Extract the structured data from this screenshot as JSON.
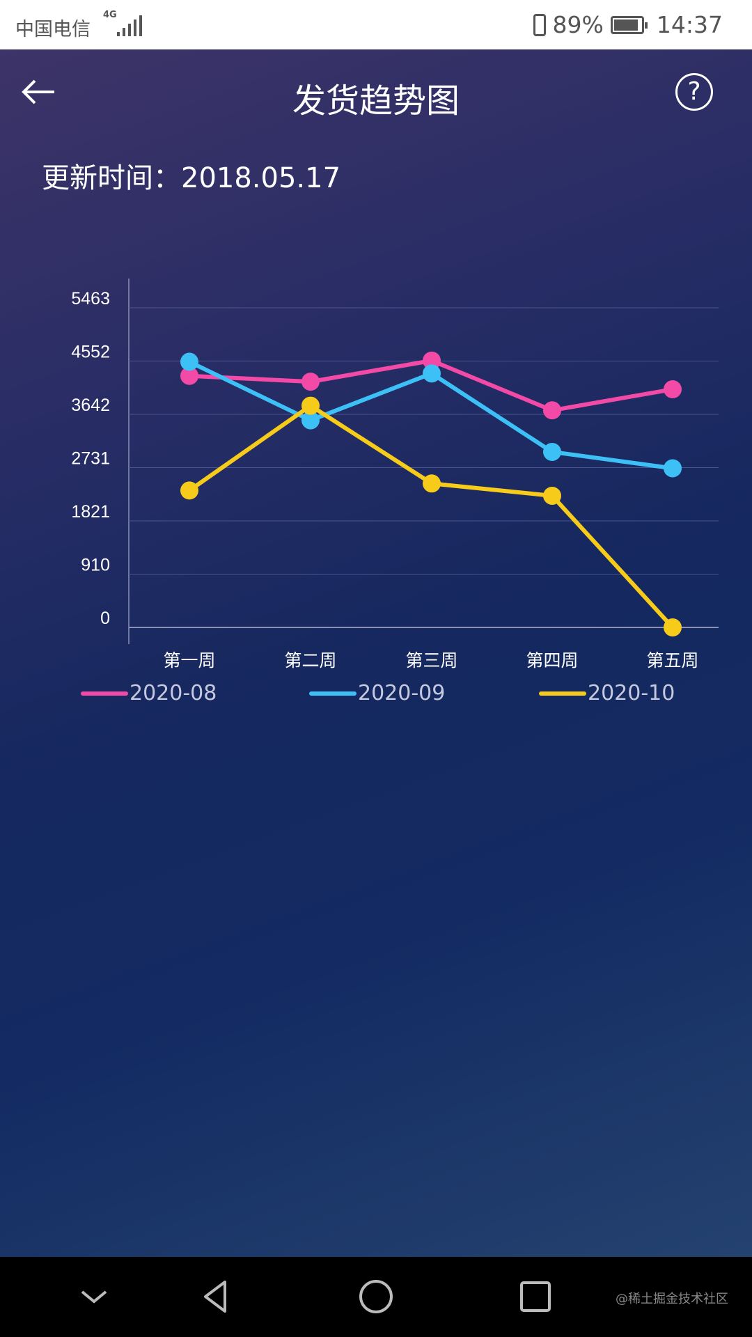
{
  "status_bar": {
    "carrier": "中国电信",
    "network": "4G",
    "battery": "89%",
    "time": "14:37"
  },
  "header": {
    "title": "发货趋势图",
    "back_icon": "arrow-left-icon",
    "help_icon": "question-circle-icon"
  },
  "update_time": "更新时间：2018.05.17",
  "chart_data": {
    "type": "line",
    "categories": [
      "第一周",
      "第二周",
      "第三周",
      "第四周",
      "第五周"
    ],
    "y_ticks": [
      "0",
      "910",
      "1821",
      "2731",
      "3642",
      "4552",
      "5463"
    ],
    "ylim": [
      0,
      5463
    ],
    "grid": true,
    "legend_position": "bottom",
    "series": [
      {
        "name": "2020-08",
        "color": "#f24aa6",
        "values": [
          4300,
          4200,
          4560,
          3710,
          4070
        ]
      },
      {
        "name": "2020-09",
        "color": "#3cc0f5",
        "values": [
          4540,
          3540,
          4340,
          3000,
          2720
        ]
      },
      {
        "name": "2020-10",
        "color": "#f6cb1a",
        "values": [
          2340,
          3790,
          2460,
          2250,
          0
        ]
      }
    ]
  },
  "nav_bar": {
    "icons": [
      "chevron-down-icon",
      "back-triangle-icon",
      "home-circle-icon",
      "recents-square-icon"
    ],
    "watermark": "@稀土掘金技术社区"
  }
}
